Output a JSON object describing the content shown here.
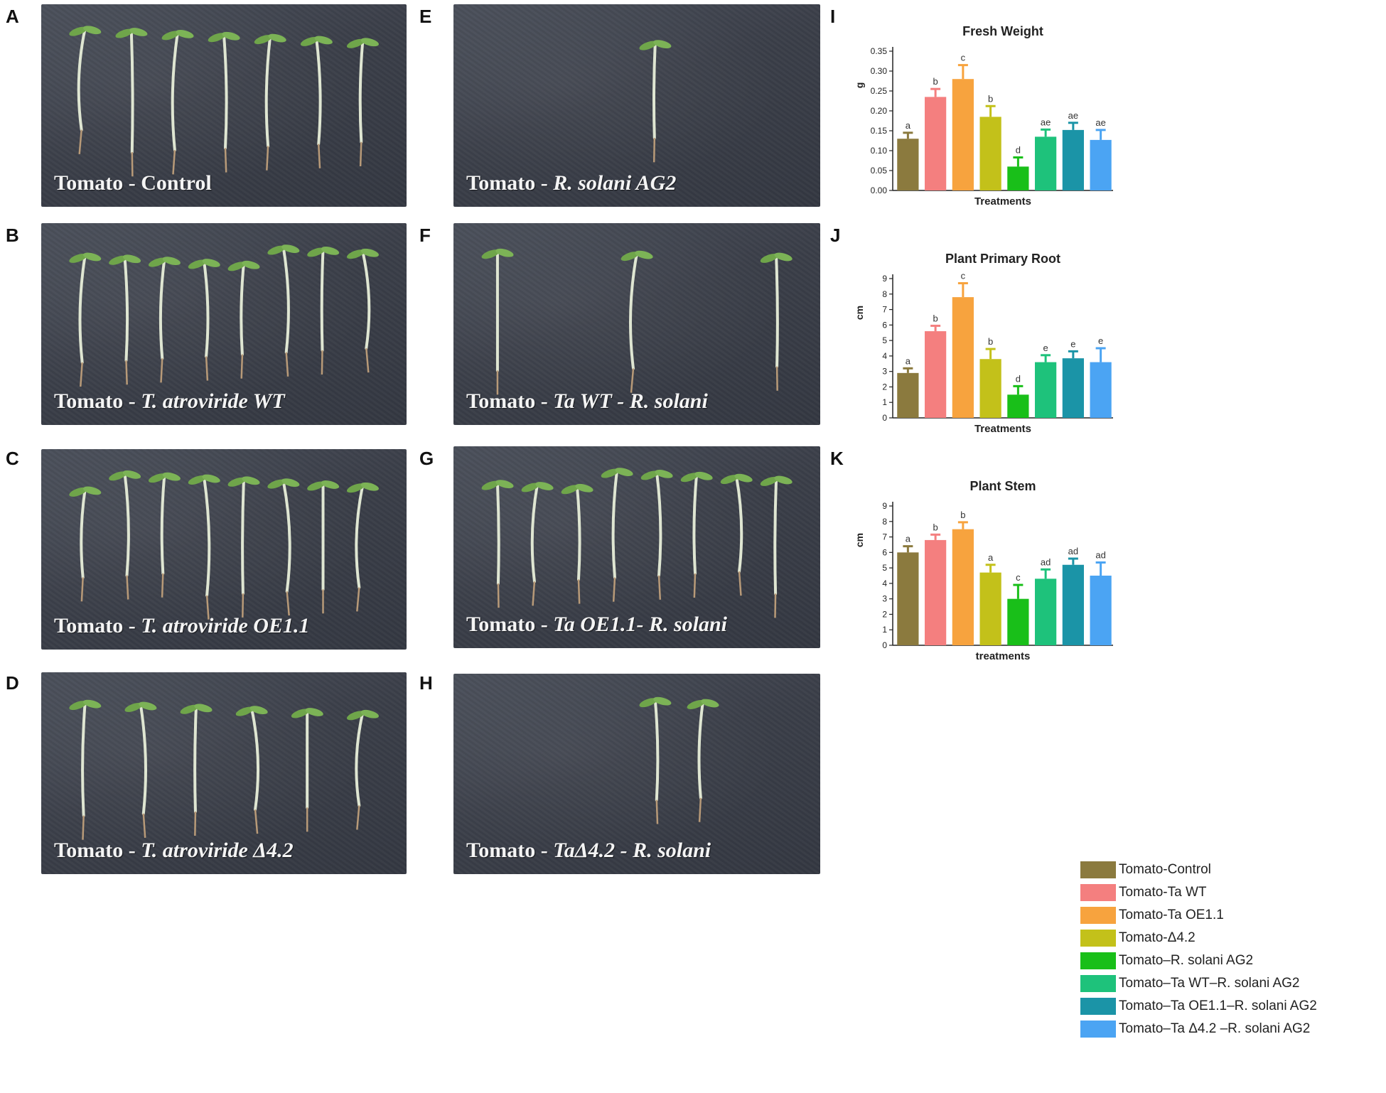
{
  "panels": {
    "A": {
      "letter": "A",
      "caption_plain": "Tomato - Control",
      "caption_italic": ""
    },
    "B": {
      "letter": "B",
      "caption_plain": "Tomato - ",
      "caption_italic": "T. atroviride WT"
    },
    "C": {
      "letter": "C",
      "caption_plain": "Tomato - ",
      "caption_italic": "T. atroviride OE1.1"
    },
    "D": {
      "letter": "D",
      "caption_plain": "Tomato - ",
      "caption_italic": "T. atroviride Δ4.2"
    },
    "E": {
      "letter": "E",
      "caption_plain": "Tomato - ",
      "caption_italic": "R. solani  AG2"
    },
    "F": {
      "letter": "F",
      "caption_plain": "Tomato - ",
      "caption_italic": "Ta WT - R. solani"
    },
    "G": {
      "letter": "G",
      "caption_plain": "Tomato - ",
      "caption_italic": "Ta OE1.1- R. solani"
    },
    "H": {
      "letter": "H",
      "caption_plain": "Tomato - ",
      "caption_italic": "TaΔ4.2 - R. solani"
    },
    "I": {
      "letter": "I"
    },
    "J": {
      "letter": "J"
    },
    "K": {
      "letter": "K"
    }
  },
  "colors": [
    "#8b7a3e",
    "#f47f7f",
    "#f7a33e",
    "#c3c11a",
    "#19bf19",
    "#1ec27b",
    "#1b94a7",
    "#4ba4f3"
  ],
  "legend": [
    "Tomato-Control",
    "Tomato-Ta WT",
    "Tomato-Ta OE1.1",
    "Tomato-Δ4.2",
    "Tomato–R. solani AG2",
    "Tomato–Ta WT–R. solani AG2",
    "Tomato–Ta OE1.1–R. solani AG2",
    "Tomato–Ta Δ4.2 –R. solani AG2"
  ],
  "chart_data": [
    {
      "panel": "I",
      "type": "bar",
      "title": "Fresh Weight",
      "xlabel": "Treatments",
      "ylabel": "g",
      "ylim": [
        0,
        0.35
      ],
      "yticks": [
        "0.00",
        "0.05",
        "0.10",
        "0.15",
        "0.20",
        "0.25",
        "0.30",
        "0.35"
      ],
      "values": [
        0.13,
        0.235,
        0.28,
        0.185,
        0.06,
        0.135,
        0.152,
        0.127
      ],
      "errors": [
        0.015,
        0.02,
        0.035,
        0.027,
        0.023,
        0.018,
        0.018,
        0.025
      ],
      "letters": [
        "a",
        "b",
        "c",
        "b",
        "d",
        "ae",
        "ae",
        "ae"
      ]
    },
    {
      "panel": "J",
      "type": "bar",
      "title": "Plant Primary Root",
      "xlabel": "Treatments",
      "ylabel": "cm",
      "ylim": [
        0,
        9
      ],
      "yticks": [
        "0",
        "1",
        "2",
        "3",
        "4",
        "5",
        "6",
        "7",
        "8",
        "9"
      ],
      "values": [
        2.9,
        5.6,
        7.8,
        3.8,
        1.5,
        3.6,
        3.85,
        3.6
      ],
      "errors": [
        0.3,
        0.35,
        0.9,
        0.65,
        0.55,
        0.45,
        0.45,
        0.9
      ],
      "letters": [
        "a",
        "b",
        "c",
        "b",
        "d",
        "e",
        "e",
        "e"
      ]
    },
    {
      "panel": "K",
      "type": "bar",
      "title": "Plant Stem",
      "xlabel": "treatments",
      "ylabel": "cm",
      "ylim": [
        0,
        9
      ],
      "yticks": [
        "0",
        "1",
        "2",
        "3",
        "4",
        "5",
        "6",
        "7",
        "8",
        "9"
      ],
      "values": [
        6.0,
        6.8,
        7.5,
        4.7,
        3.0,
        4.3,
        5.2,
        4.5
      ],
      "errors": [
        0.4,
        0.35,
        0.45,
        0.5,
        0.9,
        0.6,
        0.4,
        0.85
      ],
      "letters": [
        "a",
        "b",
        "b",
        "a",
        "c",
        "ad",
        "ad",
        "ad"
      ]
    }
  ]
}
